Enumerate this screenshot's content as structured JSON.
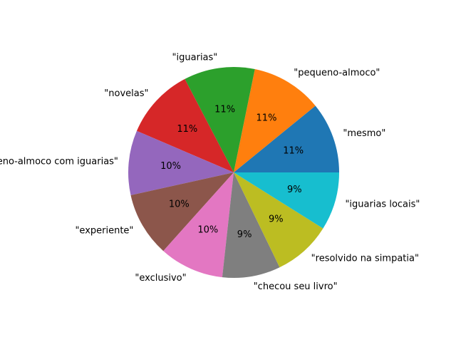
{
  "chart_data": {
    "type": "pie",
    "title": "",
    "start_angle_deg": 0,
    "direction": "counterclockwise",
    "slices": [
      {
        "label": "\"mesmo\"",
        "value": 11,
        "pct_label": "11%",
        "color": "#1f77b4"
      },
      {
        "label": "\"pequeno-almoco\"",
        "value": 11,
        "pct_label": "11%",
        "color": "#ff7f0e"
      },
      {
        "label": "\"iguarias\"",
        "value": 11,
        "pct_label": "11%",
        "color": "#2ca02c"
      },
      {
        "label": "\"novelas\"",
        "value": 11,
        "pct_label": "11%",
        "color": "#d62728"
      },
      {
        "label": "\"pequeno-almoco com iguarias\"",
        "value": 10,
        "pct_label": "10%",
        "color": "#9467bd"
      },
      {
        "label": "\"experiente\"",
        "value": 10,
        "pct_label": "10%",
        "color": "#8c564b"
      },
      {
        "label": "\"exclusivo\"",
        "value": 10,
        "pct_label": "10%",
        "color": "#e377c2"
      },
      {
        "label": "\"checou seu livro\"",
        "value": 9,
        "pct_label": "9%",
        "color": "#7f7f7f"
      },
      {
        "label": "\"resolvido na simpatia\"",
        "value": 9,
        "pct_label": "9%",
        "color": "#bcbd22"
      },
      {
        "label": "\"iguarias locais\"",
        "value": 9,
        "pct_label": "9%",
        "color": "#17becf"
      }
    ]
  }
}
